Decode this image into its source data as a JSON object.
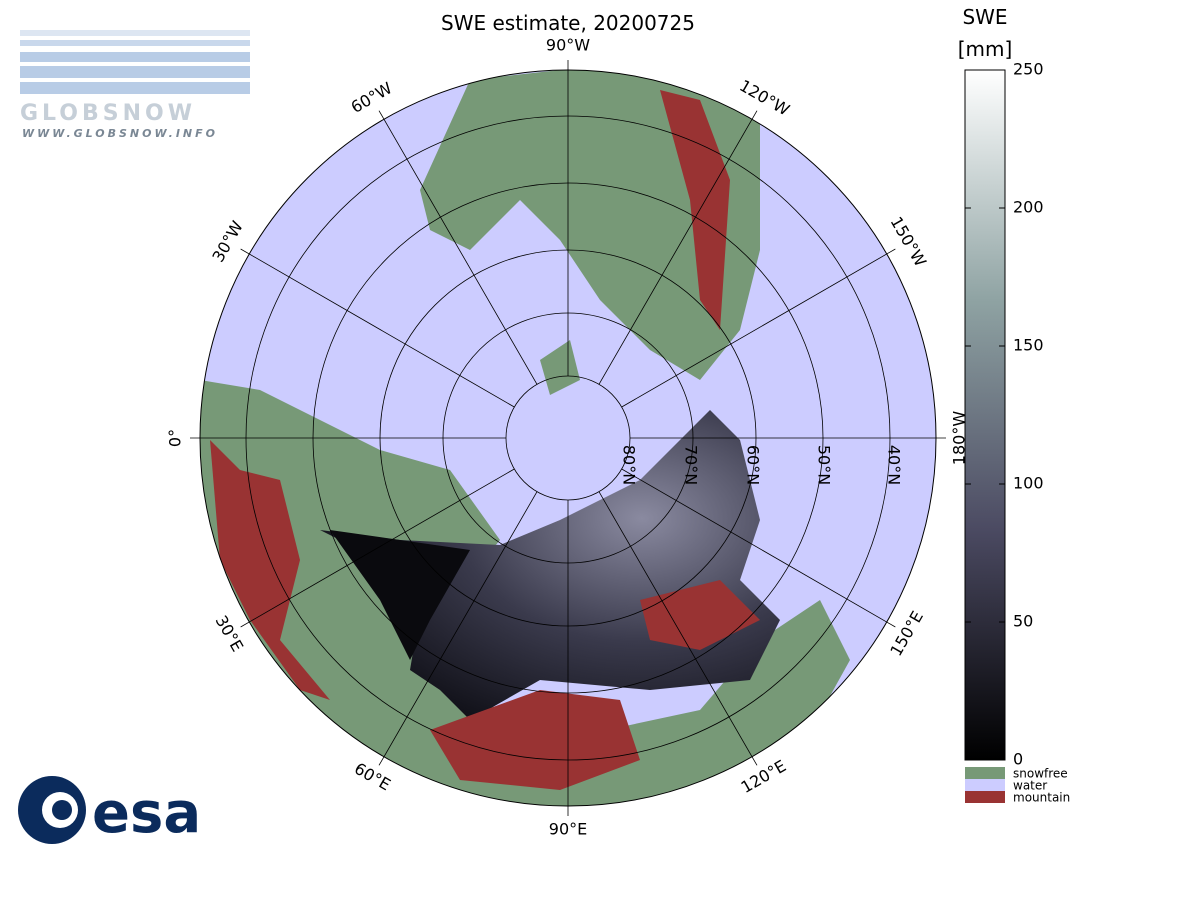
{
  "header": {
    "title": "SWE estimate, 20200725"
  },
  "logos": {
    "globsnow": "GLOBSNOW",
    "globsnow_url": "WWW.GLOBSNOW.INFO",
    "esa": "esa"
  },
  "map": {
    "longitude_labels": [
      "90°W",
      "120°W",
      "150°W",
      "180°W",
      "0°",
      "30°W",
      "60°W",
      "30°E",
      "60°E",
      "90°E",
      "120°E",
      "150°E"
    ],
    "latitude_labels": [
      "80°N",
      "70°N",
      "60°N",
      "50°N",
      "40°N"
    ]
  },
  "colorbar": {
    "title": "SWE",
    "unit": "[mm]",
    "range": [
      0,
      250
    ],
    "ticks": [
      0,
      50,
      100,
      150,
      200,
      250
    ],
    "colors": [
      "#000000",
      "#4b4a62",
      "#8fa3a3",
      "#ffffff"
    ]
  },
  "legend": [
    {
      "label": "snowfree",
      "color": "#779977"
    },
    {
      "label": "water",
      "color": "#ccccff"
    },
    {
      "label": "mountain",
      "color": "#993333"
    }
  ]
}
